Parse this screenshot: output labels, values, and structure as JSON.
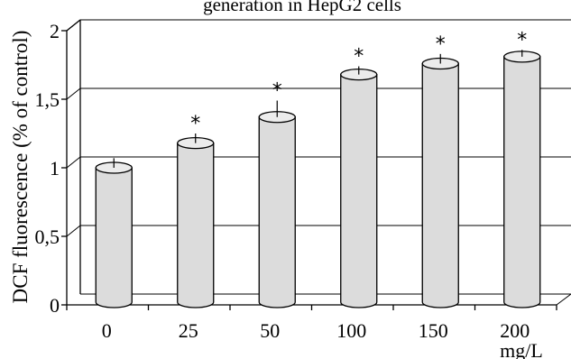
{
  "chart_data": {
    "type": "bar",
    "title": "generation in HepG2 cells",
    "xlabel": "",
    "x_unit_label": "mg/L",
    "ylabel": "DCF fluorescence (% of control)",
    "categories": [
      "0",
      "25",
      "50",
      "100",
      "150",
      "200"
    ],
    "values": [
      1.0,
      1.18,
      1.37,
      1.68,
      1.76,
      1.81
    ],
    "errors": [
      0.07,
      0.07,
      0.12,
      0.06,
      0.07,
      0.05
    ],
    "significance": [
      "",
      "*",
      "*",
      "*",
      "*",
      "*"
    ],
    "yticks": [
      "0",
      "0,5",
      "1",
      "1,5",
      "2"
    ],
    "ytick_values": [
      0,
      0.5,
      1,
      1.5,
      2
    ],
    "ylim": [
      0,
      2
    ],
    "grid": true,
    "bar_color": "#dcdcdc",
    "bar_style": "3d-cylinder"
  }
}
